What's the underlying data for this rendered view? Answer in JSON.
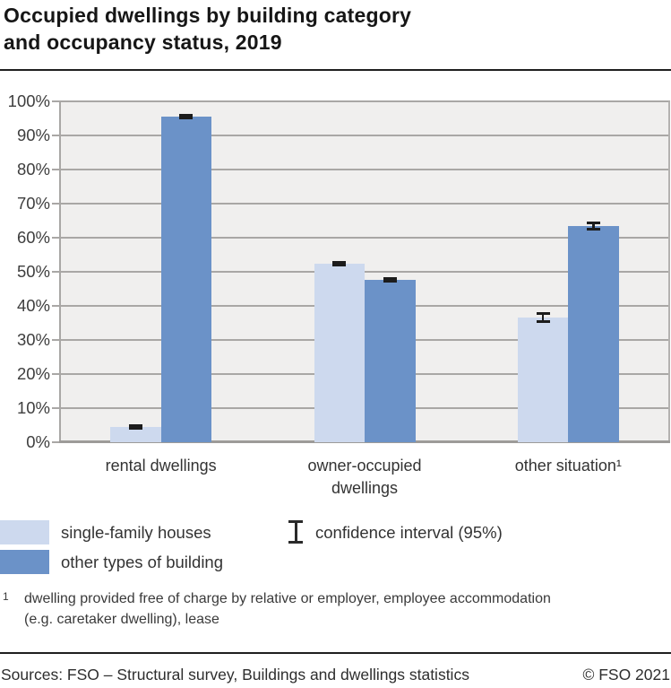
{
  "title": {
    "text": "Occupied dwellings by building category\nand occupancy status, 2019"
  },
  "chart_data": {
    "type": "bar",
    "title": "Occupied dwellings by building category and occupancy status, 2019",
    "categories": [
      "rental dwellings",
      "owner-occupied\ndwellings",
      "other situation¹"
    ],
    "series": [
      {
        "name": "single-family houses",
        "color": "#cdd9ee",
        "values": [
          4.5,
          52.4,
          36.6
        ],
        "ci95": [
          0.3,
          0.3,
          1.1
        ]
      },
      {
        "name": "other types of building",
        "color": "#6b92c8",
        "values": [
          95.5,
          47.6,
          63.4
        ],
        "ci95": [
          0.3,
          0.3,
          0.9
        ]
      }
    ],
    "ylim": [
      0,
      100
    ],
    "ytick_step": 10,
    "yticks": [
      "0%",
      "10%",
      "20%",
      "30%",
      "40%",
      "50%",
      "60%",
      "70%",
      "80%",
      "90%",
      "100%"
    ],
    "xlabel": "",
    "ylabel": "",
    "grid": true,
    "legend_position": "bottom-left",
    "error_bars": {
      "label": "confidence interval (95%)",
      "level": "95%"
    }
  },
  "legend": {
    "ci_label": "confidence interval (95%)"
  },
  "footnote": {
    "marker": "1",
    "text": "dwelling provided free of charge by relative or employer, employee accommodation\n(e.g. caretaker dwelling), lease"
  },
  "footer": {
    "sources": "Sources: FSO – Structural survey, Buildings and dwellings statistics",
    "copyright": "© FSO 2021"
  },
  "colors": {
    "plot_background": "#f0efee",
    "gridline": "#a9a7a5",
    "error_bar": "#1c1c1c",
    "text": "#333333"
  }
}
